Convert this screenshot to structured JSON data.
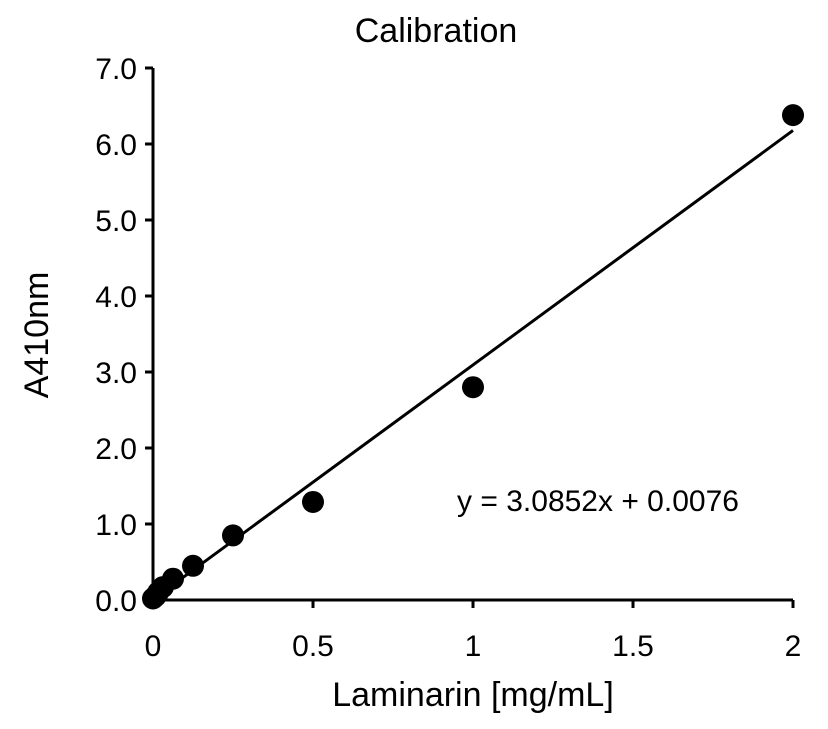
{
  "chart_data": {
    "type": "scatter",
    "title": "Calibration",
    "xlabel": "Laminarin [mg/mL]",
    "ylabel": "A410nm",
    "xlim": [
      0,
      2
    ],
    "ylim": [
      0,
      7
    ],
    "xticks": [
      "0",
      "0.5",
      "1",
      "1.5",
      "2"
    ],
    "yticks": [
      "0.0",
      "1.0",
      "2.0",
      "3.0",
      "4.0",
      "5.0",
      "6.0",
      "7.0"
    ],
    "grid": false,
    "legend": "none",
    "series": [
      {
        "x": [
          0,
          0.008,
          0.016,
          0.031,
          0.0625,
          0.125,
          0.25,
          0.5,
          1,
          2
        ],
        "y": [
          0.02,
          0.05,
          0.1,
          0.17,
          0.28,
          0.45,
          0.85,
          1.29,
          2.8,
          6.38
        ]
      }
    ],
    "trendline": {
      "type": "linear",
      "slope": 3.0852,
      "intercept": 0.0076,
      "x_range": [
        0,
        2
      ],
      "equation": "y = 3.0852x + 0.0076"
    },
    "colors": {
      "points": "#000000",
      "line": "#000000",
      "axes": "#000000"
    }
  }
}
